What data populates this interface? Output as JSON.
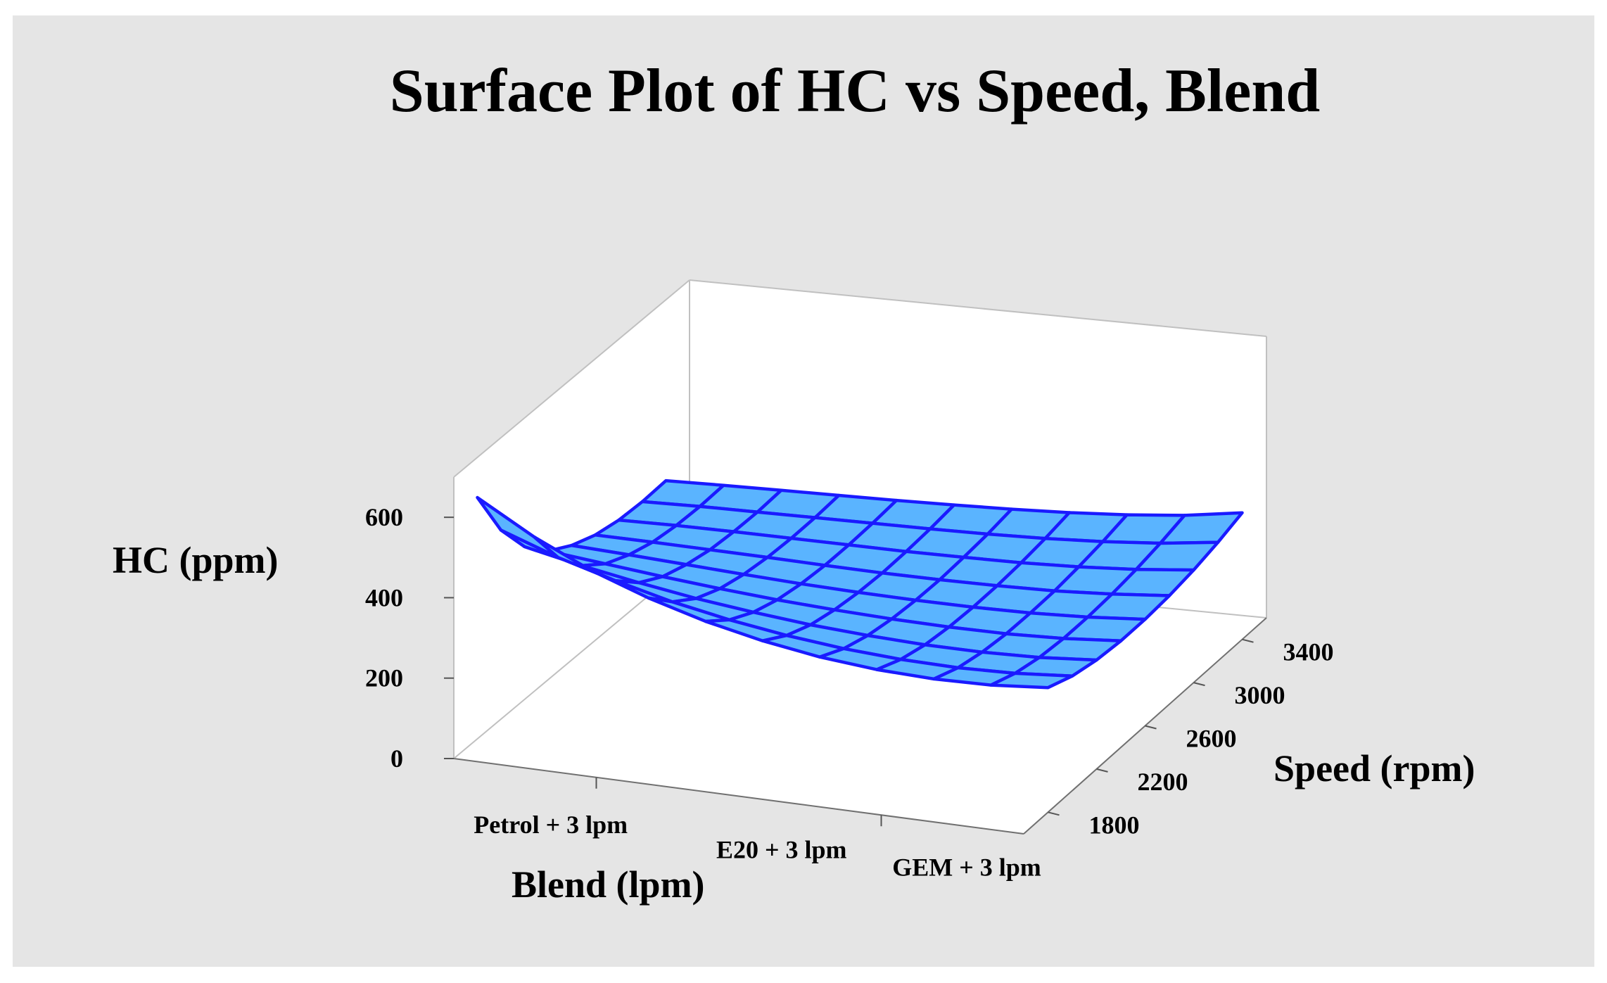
{
  "colors": {
    "frame_background": "#e5e5e5",
    "plot_background": "#ffffff",
    "surface_fill": "#5ab4ff",
    "surface_grid": "#1a1aff"
  },
  "chart_data": {
    "type": "surface",
    "title": "Surface Plot of HC vs Speed, Blend",
    "xlabel": "Blend (lpm)",
    "ylabel": "Speed (rpm)",
    "zlabel": "HC (ppm)",
    "x_categories": [
      "Petrol + 3 lpm",
      "E20 + 3 lpm",
      "GEM + 3 lpm"
    ],
    "x_range": [
      0,
      2
    ],
    "y_ticks": [
      1800,
      2200,
      2600,
      3000,
      3400
    ],
    "y_range": [
      1600,
      3600
    ],
    "z_ticks": [
      0,
      200,
      400,
      600
    ],
    "z_range": [
      0,
      700
    ],
    "grid_x": [
      0,
      0.2,
      0.4,
      0.6,
      0.8,
      1.0,
      1.2,
      1.4,
      1.6,
      1.8,
      2.0
    ],
    "grid_y": [
      1800,
      2000,
      2200,
      2400,
      2600,
      2800,
      3000,
      3200,
      3400
    ],
    "z_values": [
      [
        600,
        470,
        380,
        320,
        285,
        262,
        250,
        247,
        250
      ],
      [
        520,
        420,
        350,
        305,
        278,
        260,
        252,
        250,
        253
      ],
      [
        455,
        380,
        325,
        290,
        270,
        257,
        252,
        251,
        255
      ],
      [
        405,
        345,
        303,
        277,
        262,
        254,
        251,
        252,
        257
      ],
      [
        365,
        318,
        286,
        266,
        255,
        250,
        250,
        253,
        259
      ],
      [
        335,
        297,
        272,
        258,
        250,
        247,
        249,
        254,
        262
      ],
      [
        313,
        282,
        263,
        252,
        247,
        246,
        250,
        256,
        266
      ],
      [
        300,
        273,
        257,
        249,
        246,
        247,
        252,
        260,
        272
      ],
      [
        295,
        270,
        256,
        249,
        248,
        250,
        257,
        267,
        281
      ],
      [
        298,
        274,
        260,
        254,
        254,
        258,
        266,
        278,
        294
      ],
      [
        310,
        285,
        271,
        265,
        265,
        270,
        280,
        295,
        315
      ]
    ]
  }
}
